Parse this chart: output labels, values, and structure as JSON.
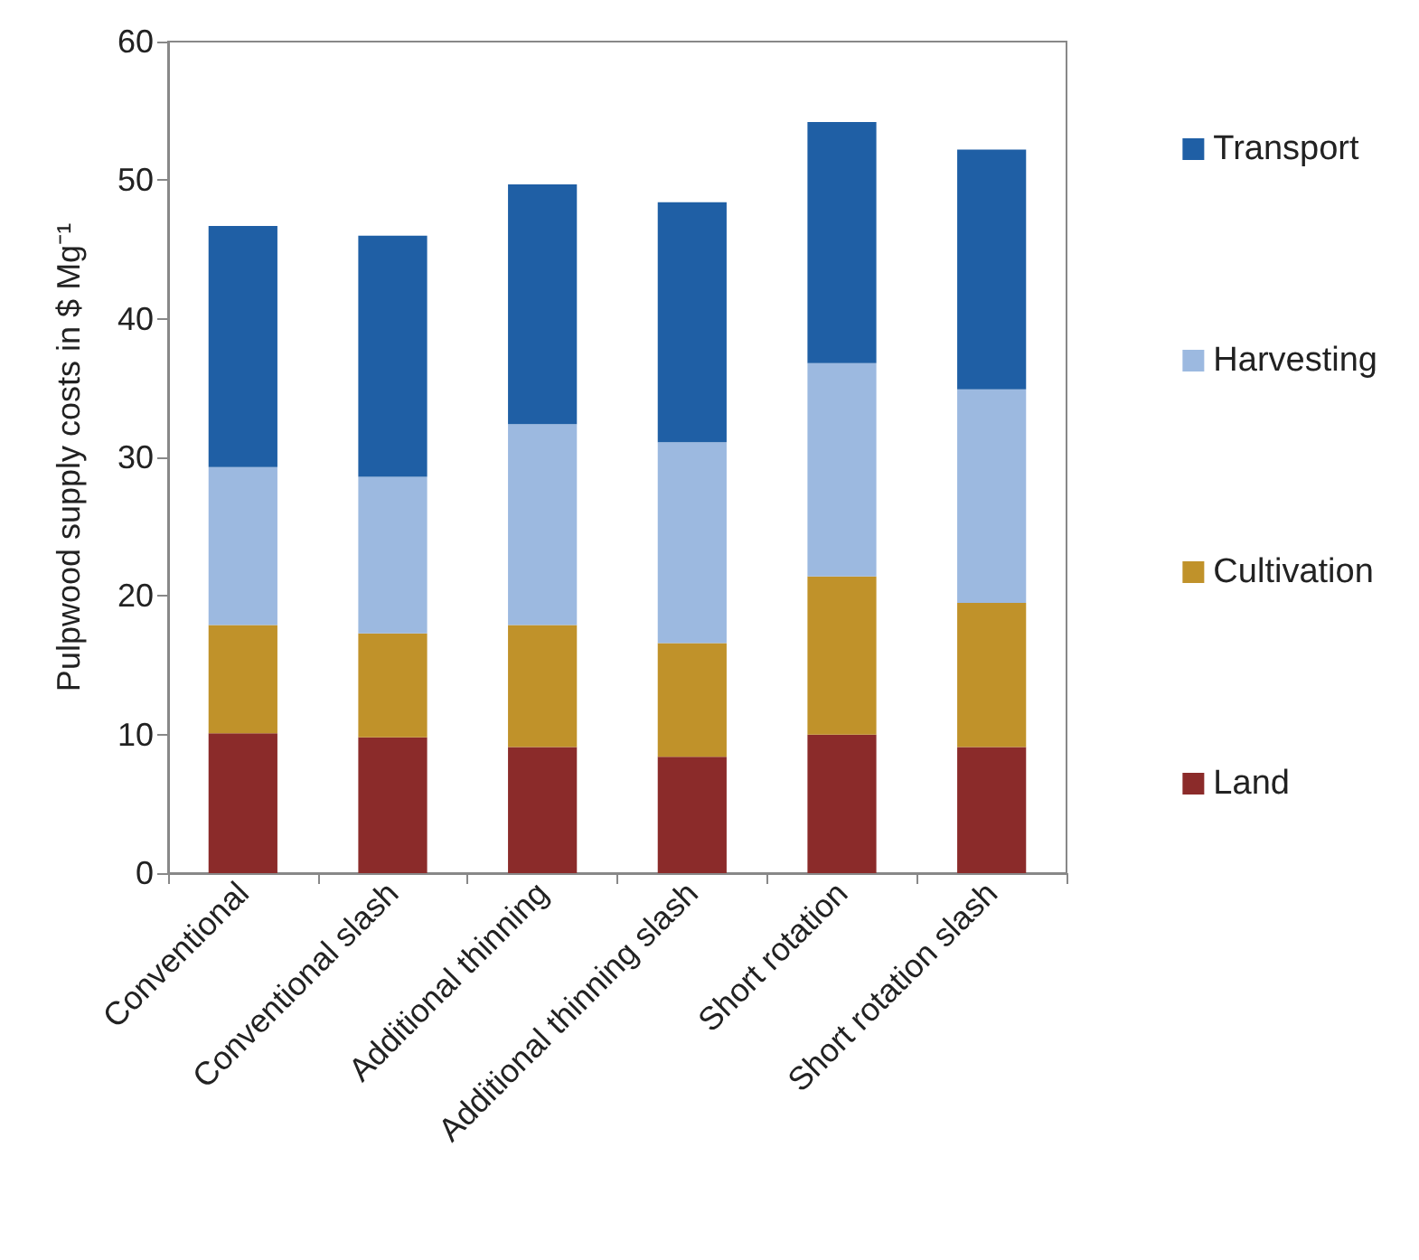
{
  "chart_data": {
    "type": "bar",
    "stacked": true,
    "ylabel": "Pulpwood supply costs in $ Mg⁻¹",
    "categories": [
      "Conventional",
      "Conventional slash",
      "Additional thinning",
      "Additional thinning slash",
      "Short rotation",
      "Short rotation slash"
    ],
    "series": [
      {
        "name": "Land",
        "color": "#8b2b2a",
        "values": [
          10.1,
          9.8,
          9.1,
          8.4,
          10.0,
          9.1
        ]
      },
      {
        "name": "Cultivation",
        "color": "#c0922a",
        "values": [
          7.8,
          7.5,
          8.8,
          8.2,
          11.4,
          10.4
        ]
      },
      {
        "name": "Harvesting",
        "color": "#9cb9e0",
        "values": [
          11.4,
          11.3,
          14.5,
          14.5,
          15.4,
          15.4
        ]
      },
      {
        "name": "Transport",
        "color": "#1f5fa5",
        "values": [
          17.4,
          17.4,
          17.3,
          17.3,
          17.4,
          17.3
        ]
      }
    ],
    "ylim": [
      0,
      60
    ],
    "yticks": [
      0,
      10,
      20,
      30,
      40,
      50,
      60
    ],
    "grid": false,
    "legend": "right"
  }
}
